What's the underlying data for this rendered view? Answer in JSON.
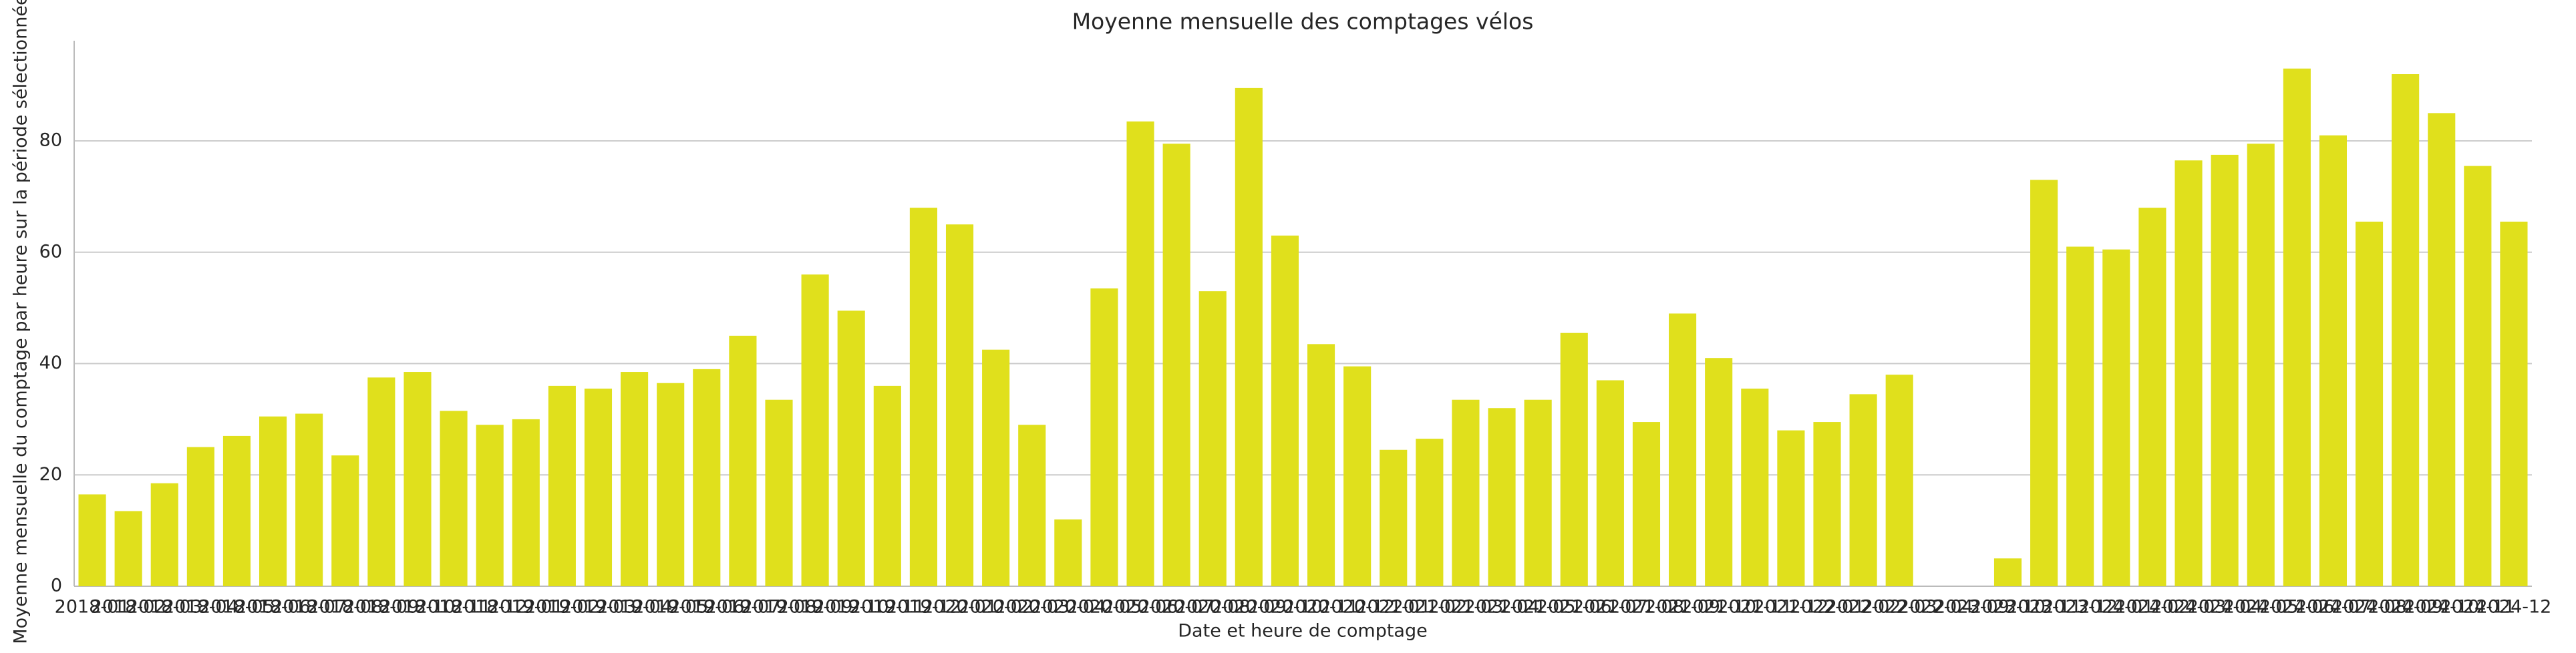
{
  "chart_data": {
    "type": "bar",
    "title": "Moyenne mensuelle des comptages vélos",
    "x_label": "Date et heure de comptage",
    "y_label": "Moyenne mensuelle du comptage par heure sur la période sélectionnée",
    "categories": [
      "2018-01",
      "2018-02",
      "2018-03",
      "2018-04",
      "2018-05",
      "2018-06",
      "2018-07",
      "2018-08",
      "2018-09",
      "2018-10",
      "2018-11",
      "2018-12",
      "2019-01",
      "2019-02",
      "2019-03",
      "2019-04",
      "2019-05",
      "2019-06",
      "2019-07",
      "2019-08",
      "2019-09",
      "2019-10",
      "2019-11",
      "2019-12",
      "2020-01",
      "2020-02",
      "2020-03",
      "2020-04",
      "2020-05",
      "2020-06",
      "2020-07",
      "2020-08",
      "2020-09",
      "2020-10",
      "2020-11",
      "2020-12",
      "2021-01",
      "2021-02",
      "2021-03",
      "2021-04",
      "2021-05",
      "2021-06",
      "2021-07",
      "2021-08",
      "2021-09",
      "2021-10",
      "2021-11",
      "2021-12",
      "2022-01",
      "2022-02",
      "2022-03",
      "2022-04",
      "2023-09",
      "2023-10",
      "2023-11",
      "2023-12",
      "2024-01",
      "2024-02",
      "2024-03",
      "2024-04",
      "2024-05",
      "2024-06",
      "2024-07",
      "2024-08",
      "2024-09",
      "2024-10",
      "2024-11",
      "2024-12"
    ],
    "values": [
      16.5,
      13.5,
      18.5,
      25,
      27,
      30.5,
      31,
      23.5,
      37.5,
      38.5,
      31.5,
      29,
      30,
      36,
      35.5,
      38.5,
      36.5,
      39,
      45,
      33.5,
      56,
      49.5,
      36,
      68,
      65,
      42.5,
      29,
      12,
      53.5,
      83.5,
      79.5,
      53,
      89.5,
      63,
      43.5,
      39.5,
      24.5,
      26.5,
      33.5,
      32,
      33.5,
      45.5,
      37,
      29.5,
      49,
      41,
      35.5,
      28,
      29.5,
      34.5,
      38,
      null,
      null,
      5,
      73,
      61,
      60.5,
      68,
      76.5,
      77.5,
      79.5,
      93,
      81,
      65.5,
      92,
      85,
      75.5,
      65.5
    ],
    "color": "#e0e01c",
    "ylim": [
      0,
      98
    ],
    "yticks": [
      0,
      20,
      40,
      60,
      80
    ],
    "grid": true
  }
}
